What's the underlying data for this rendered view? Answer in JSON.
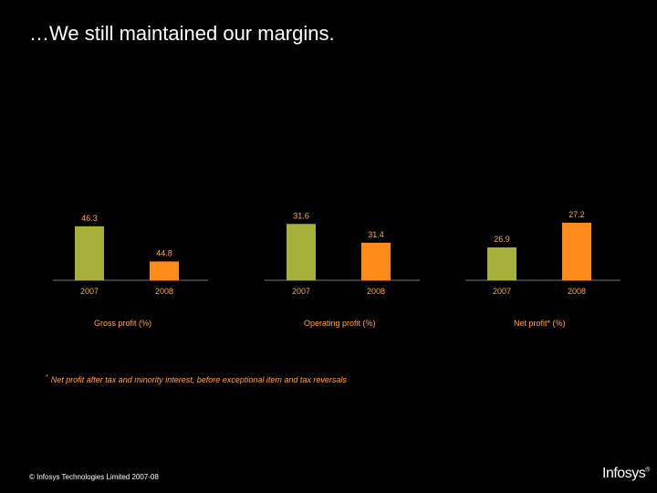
{
  "slide": {
    "title": "…We still maintained our margins.",
    "footnote_marker": "*",
    "footnote": "Net profit after tax and minority interest, before exceptional item and tax reversals",
    "copyright": "© Infosys Technologies Limited 2007-08",
    "logo_text": "Infosys",
    "logo_mark": "®"
  },
  "colors": {
    "bar_2007": "#a8b03c",
    "bar_2008": "#ff8c1a",
    "label": "#ffa64d",
    "axis": "#777777"
  },
  "chart_data": [
    {
      "type": "bar",
      "caption": "Gross profit (%)",
      "categories": [
        "2007",
        "2008"
      ],
      "values": [
        46.3,
        44.8
      ],
      "value_labels": [
        "46.3",
        "44.8"
      ],
      "ylim": [
        44.0,
        46.8
      ]
    },
    {
      "type": "bar",
      "caption": "Operating profit (%)",
      "categories": [
        "2007",
        "2008"
      ],
      "values": [
        31.6,
        31.4
      ],
      "value_labels": [
        "31.6",
        "31.4"
      ],
      "ylim": [
        31.0,
        31.7
      ]
    },
    {
      "type": "bar",
      "caption": "Net profit*  (%)",
      "categories": [
        "2007",
        "2008"
      ],
      "values": [
        26.9,
        27.2
      ],
      "value_labels": [
        "26.9",
        "27.2"
      ],
      "ylim": [
        26.5,
        27.3
      ]
    }
  ]
}
